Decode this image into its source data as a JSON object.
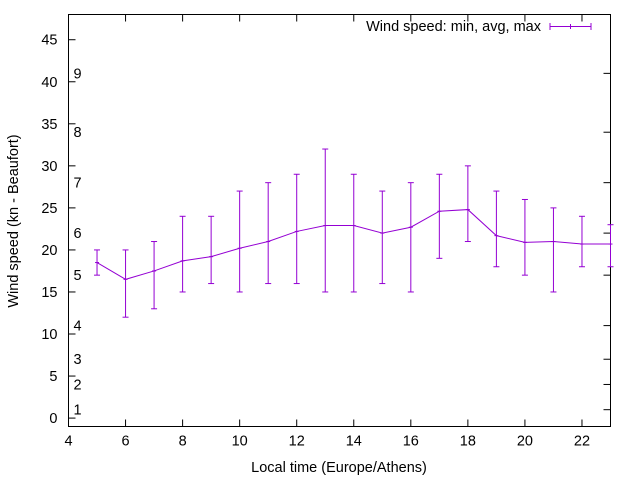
{
  "chart_data": {
    "type": "line",
    "title": "",
    "xlabel": "Local time (Europe/Athens)",
    "ylabel": "Wind speed (kn - Beaufort)",
    "xlim": [
      4,
      23
    ],
    "ylim": [
      -1,
      48
    ],
    "xticks": [
      4,
      6,
      8,
      10,
      12,
      14,
      16,
      18,
      20,
      22
    ],
    "yticks": [
      0,
      5,
      10,
      15,
      20,
      25,
      30,
      35,
      40,
      45
    ],
    "grid": false,
    "legend_position": "top-right",
    "beaufort_scale": [
      {
        "label": "1",
        "value": 1
      },
      {
        "label": "2",
        "value": 4
      },
      {
        "label": "3",
        "value": 7
      },
      {
        "label": "4",
        "value": 11
      },
      {
        "label": "5",
        "value": 17
      },
      {
        "label": "6",
        "value": 22
      },
      {
        "label": "7",
        "value": 28
      },
      {
        "label": "8",
        "value": 34
      },
      {
        "label": "9",
        "value": 41
      }
    ],
    "series": [
      {
        "name": "Wind speed: min, avg, max",
        "color": "#9400d3",
        "x": [
          5,
          6,
          7,
          8,
          9,
          10,
          11,
          12,
          13,
          14,
          15,
          16,
          17,
          18,
          19,
          20,
          21,
          22,
          23
        ],
        "avg": [
          18.5,
          16.5,
          17.5,
          18.7,
          19.2,
          20.2,
          21.0,
          22.2,
          22.9,
          22.9,
          22.0,
          22.7,
          24.6,
          24.8,
          21.7,
          20.9,
          21.0,
          20.7,
          20.7
        ],
        "min": [
          17,
          12,
          13,
          15,
          16,
          15,
          16,
          16,
          15,
          15,
          16,
          15,
          19,
          21,
          18,
          17,
          15,
          18,
          18
        ],
        "max": [
          20,
          20,
          21,
          24,
          24,
          27,
          28,
          29,
          32,
          29,
          27,
          28,
          29,
          30,
          27,
          26,
          25,
          24,
          23
        ]
      }
    ]
  }
}
